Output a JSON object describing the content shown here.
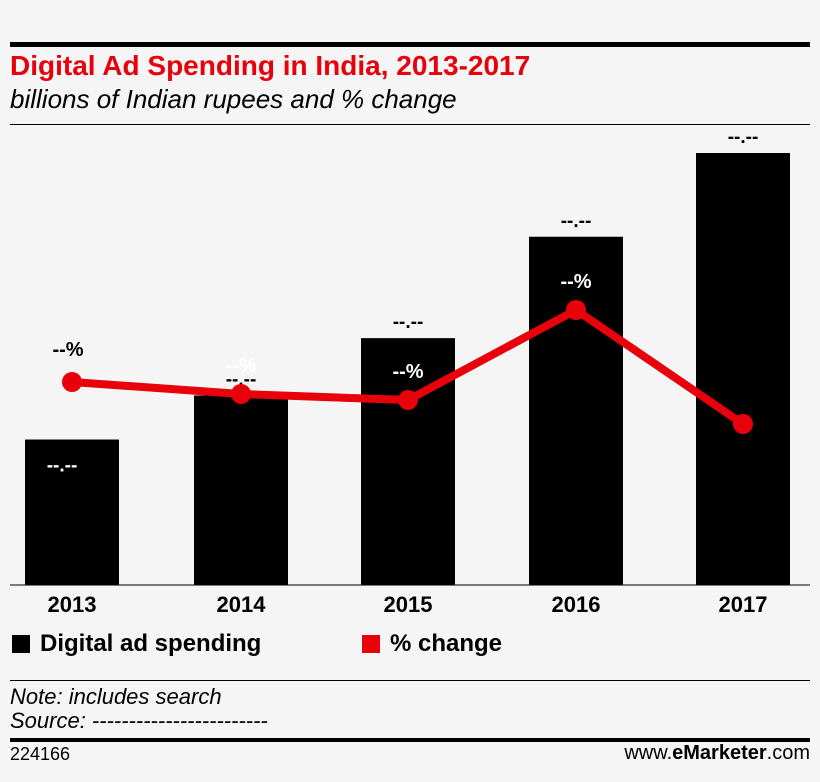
{
  "chart_data": {
    "type": "bar",
    "title": "Digital Ad Spending in India, 2013-2017",
    "subtitle": "billions of Indian rupees and % change",
    "categories": [
      "2013",
      "2014",
      "2015",
      "2016",
      "2017"
    ],
    "series": [
      {
        "name": "Digital ad spending",
        "type": "bar",
        "color": "#000000",
        "values": [
          33,
          43,
          56,
          79,
          98
        ],
        "labels": [
          "--.--",
          "--.--",
          "--.--",
          "--.--",
          "--.--"
        ]
      },
      {
        "name": "% change",
        "type": "line",
        "color": "#e8000b",
        "values": [
          34,
          32,
          31,
          46,
          27
        ],
        "labels": [
          "--%",
          "--%",
          "--%",
          "--%",
          "--%"
        ]
      }
    ],
    "legend_position": "bottom-left",
    "grid": false
  },
  "footer": {
    "note": "Note: includes search",
    "source": "Source: ------------------------",
    "id": "224166",
    "brand_prefix": "www.",
    "brand_bold": "eMarketer",
    "brand_suffix": ".com"
  }
}
